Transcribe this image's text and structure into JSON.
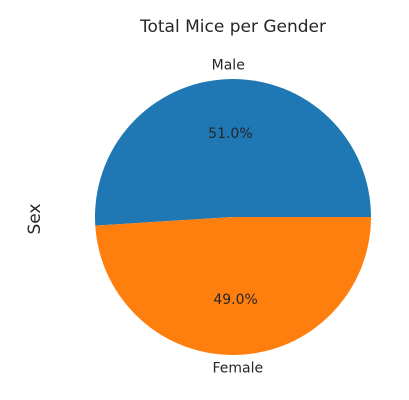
{
  "chart_data": {
    "type": "pie",
    "title": "Total Mice per Gender",
    "ylabel": "Sex",
    "categories": [
      "Male",
      "Female"
    ],
    "values": [
      51.0,
      49.0
    ],
    "value_labels": [
      "51.0%",
      "49.0%"
    ],
    "colors": [
      "#1f77b4",
      "#ff7f0e"
    ],
    "start_angle_deg": 0,
    "direction": "counterclockwise",
    "legend": "none"
  }
}
